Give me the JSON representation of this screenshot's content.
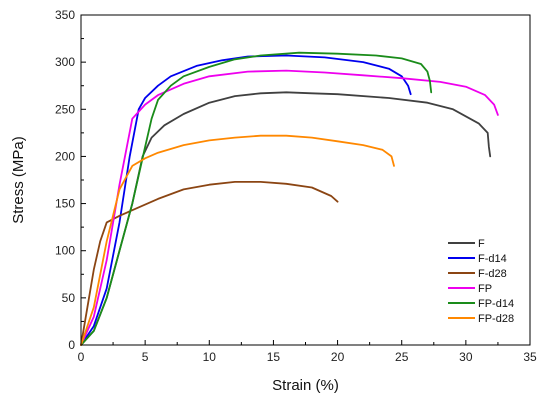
{
  "chart_data": {
    "type": "line",
    "xlabel": "Strain (%)",
    "ylabel": "Stress (MPa)",
    "xlim": [
      0,
      35
    ],
    "ylim": [
      0,
      350
    ],
    "xticks": [
      0,
      5,
      10,
      15,
      20,
      25,
      30,
      35
    ],
    "yticks": [
      0,
      50,
      100,
      150,
      200,
      250,
      300,
      350
    ],
    "legend_position": "lower-right",
    "grid": false,
    "series": [
      {
        "name": "F",
        "color": "#404040",
        "points": [
          [
            0,
            0
          ],
          [
            1,
            15
          ],
          [
            2,
            50
          ],
          [
            3,
            100
          ],
          [
            4,
            150
          ],
          [
            4.8,
            200
          ],
          [
            5.5,
            220
          ],
          [
            6.5,
            233
          ],
          [
            8,
            245
          ],
          [
            10,
            257
          ],
          [
            12,
            264
          ],
          [
            14,
            267
          ],
          [
            16,
            268
          ],
          [
            18,
            267
          ],
          [
            20,
            266
          ],
          [
            24,
            262
          ],
          [
            27,
            257
          ],
          [
            29,
            250
          ],
          [
            31,
            235
          ],
          [
            31.7,
            225
          ],
          [
            31.8,
            210
          ],
          [
            31.9,
            200
          ]
        ]
      },
      {
        "name": "F-d14",
        "color": "#0000ee",
        "points": [
          [
            0,
            0
          ],
          [
            1,
            20
          ],
          [
            2,
            60
          ],
          [
            3,
            130
          ],
          [
            3.8,
            200
          ],
          [
            4.5,
            250
          ],
          [
            5,
            262
          ],
          [
            6,
            275
          ],
          [
            7,
            285
          ],
          [
            9,
            296
          ],
          [
            11,
            302
          ],
          [
            13,
            306
          ],
          [
            16,
            307
          ],
          [
            19,
            305
          ],
          [
            22,
            300
          ],
          [
            24,
            293
          ],
          [
            25,
            285
          ],
          [
            25.5,
            275
          ],
          [
            25.7,
            266
          ]
        ]
      },
      {
        "name": "F-d28",
        "color": "#8b4513",
        "points": [
          [
            0,
            0
          ],
          [
            0.5,
            40
          ],
          [
            1,
            80
          ],
          [
            1.5,
            110
          ],
          [
            2,
            130
          ],
          [
            3,
            137
          ],
          [
            4,
            143
          ],
          [
            6,
            155
          ],
          [
            8,
            165
          ],
          [
            10,
            170
          ],
          [
            12,
            173
          ],
          [
            14,
            173
          ],
          [
            16,
            171
          ],
          [
            18,
            167
          ],
          [
            19.5,
            158
          ],
          [
            20,
            152
          ]
        ]
      },
      {
        "name": "FP",
        "color": "#ee00ee",
        "points": [
          [
            0,
            0
          ],
          [
            1,
            30
          ],
          [
            2,
            90
          ],
          [
            3,
            170
          ],
          [
            4,
            240
          ],
          [
            5,
            255
          ],
          [
            6,
            265
          ],
          [
            8,
            277
          ],
          [
            10,
            285
          ],
          [
            13,
            290
          ],
          [
            16,
            291
          ],
          [
            19,
            289
          ],
          [
            22,
            286
          ],
          [
            25,
            283
          ],
          [
            28,
            279
          ],
          [
            30,
            274
          ],
          [
            31.5,
            265
          ],
          [
            32.2,
            255
          ],
          [
            32.5,
            244
          ]
        ]
      },
      {
        "name": "FP-d14",
        "color": "#1a8c1a",
        "points": [
          [
            0,
            0
          ],
          [
            1,
            15
          ],
          [
            2,
            50
          ],
          [
            3,
            100
          ],
          [
            4,
            150
          ],
          [
            5,
            210
          ],
          [
            5.5,
            240
          ],
          [
            6,
            260
          ],
          [
            7,
            275
          ],
          [
            8,
            285
          ],
          [
            10,
            295
          ],
          [
            12,
            303
          ],
          [
            14,
            307
          ],
          [
            17,
            310
          ],
          [
            20,
            309
          ],
          [
            23,
            307
          ],
          [
            25,
            304
          ],
          [
            26.5,
            298
          ],
          [
            27,
            290
          ],
          [
            27.2,
            280
          ],
          [
            27.3,
            268
          ]
        ]
      },
      {
        "name": "FP-d28",
        "color": "#ff8800",
        "points": [
          [
            0,
            0
          ],
          [
            1,
            40
          ],
          [
            2,
            110
          ],
          [
            3,
            165
          ],
          [
            4,
            190
          ],
          [
            5,
            198
          ],
          [
            6,
            204
          ],
          [
            8,
            212
          ],
          [
            10,
            217
          ],
          [
            12,
            220
          ],
          [
            14,
            222
          ],
          [
            16,
            222
          ],
          [
            18,
            220
          ],
          [
            20,
            216
          ],
          [
            22,
            212
          ],
          [
            23.5,
            207
          ],
          [
            24.2,
            200
          ],
          [
            24.4,
            190
          ]
        ]
      }
    ]
  }
}
